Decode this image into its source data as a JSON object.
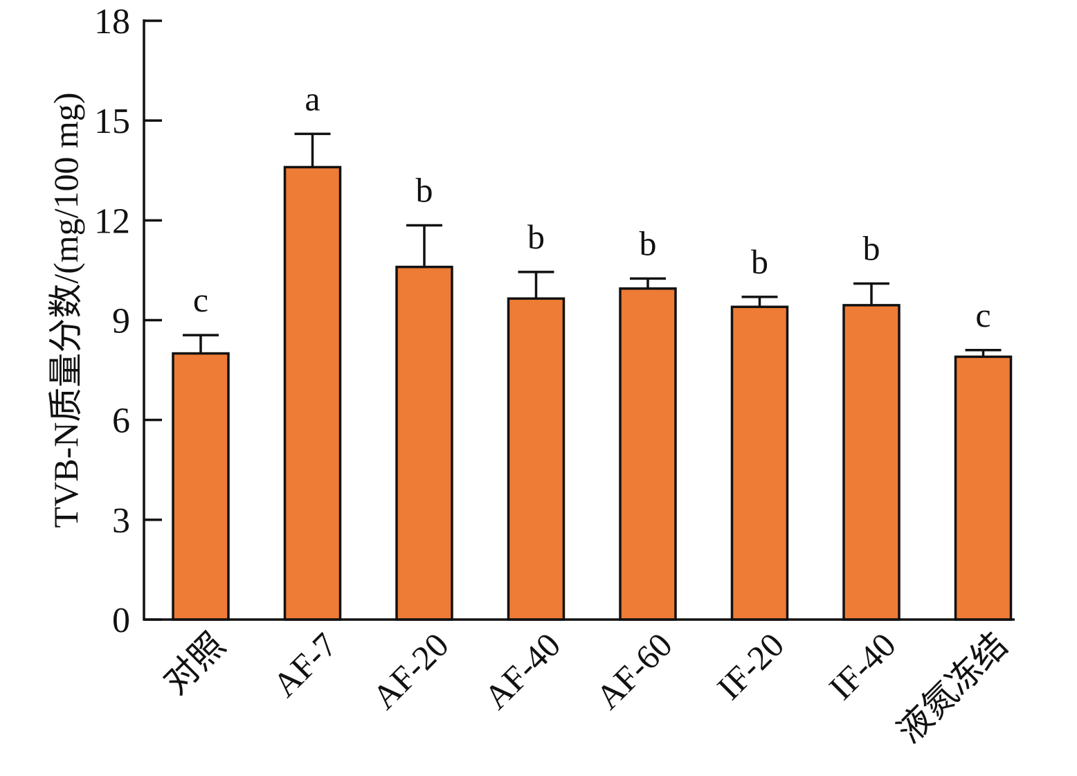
{
  "chart_data": {
    "type": "bar",
    "title": "",
    "xlabel": "",
    "ylabel": "TVB-N质量分数/(mg/100 mg)",
    "ylim": [
      0,
      18
    ],
    "yticks": [
      0,
      3,
      6,
      9,
      12,
      15,
      18
    ],
    "grid": false,
    "legend": "none",
    "categories": [
      "对照",
      "AF-7",
      "AF-20",
      "AF-40",
      "AF-60",
      "IF-20",
      "IF-40",
      "液氮冻结"
    ],
    "values": [
      8.0,
      13.6,
      10.6,
      9.65,
      9.95,
      9.4,
      9.45,
      7.9
    ],
    "errors": [
      0.55,
      1.0,
      1.25,
      0.8,
      0.3,
      0.3,
      0.65,
      0.2
    ],
    "significance": [
      "c",
      "a",
      "b",
      "b",
      "b",
      "b",
      "b",
      "c"
    ],
    "colors": {
      "bar": "#ee7b36",
      "outline": "#111111",
      "axis": "#111111"
    }
  }
}
